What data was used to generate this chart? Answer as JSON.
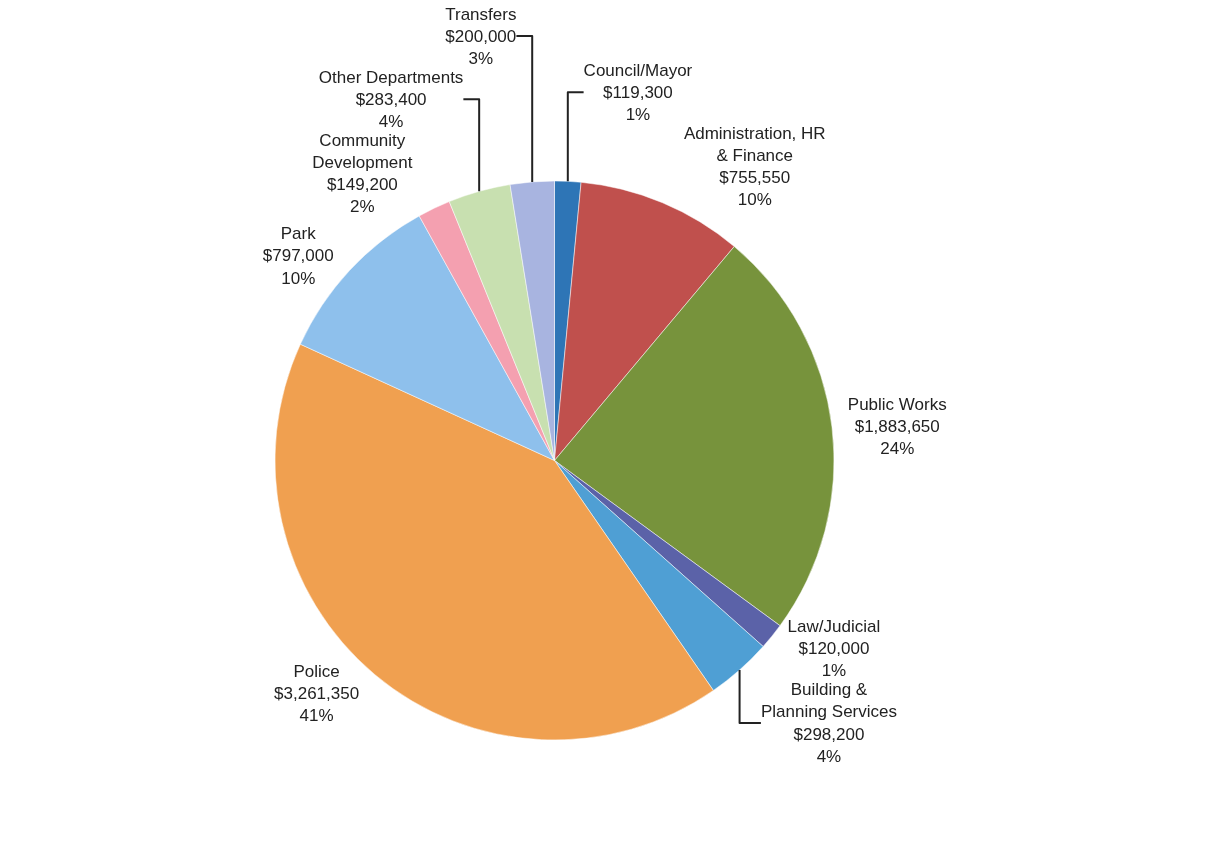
{
  "chart_data": {
    "type": "pie",
    "categories": [
      "Council/Mayor",
      "Administration, HR & Finance",
      "Public Works",
      "Law/Judicial",
      "Building & Planning Services",
      "Police",
      "Park",
      "Community Development",
      "Other Departments",
      "Transfers"
    ],
    "values": [
      119300,
      755550,
      1883650,
      120000,
      298200,
      3261350,
      797000,
      149200,
      283400,
      200000
    ],
    "value_labels": [
      "$119,300\n1%",
      "$755,550\n10%",
      "$1,883,650\n24%",
      "$120,000\n1%",
      "$298,200\n4%",
      "$3,261,350\n41%",
      "$797,000\n10%",
      "$149,200\n2%",
      "$283,400\n4%",
      "$200,000\n3%"
    ],
    "colors": [
      "#2e75b6",
      "#c0504d",
      "#77933c",
      "#5b62a8",
      "#4f9fd4",
      "#f0a050",
      "#8ec0ec",
      "#f4a0b0",
      "#c8e0b0",
      "#a8b4e0"
    ],
    "legend": false
  }
}
